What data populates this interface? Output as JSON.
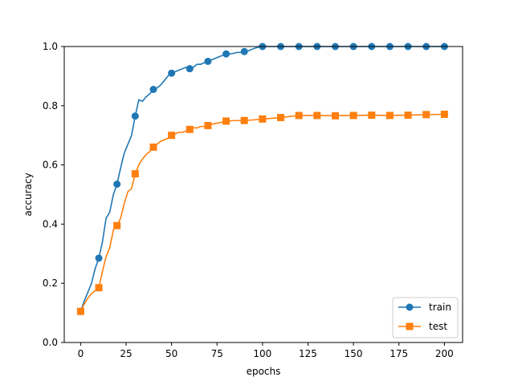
{
  "chart_data": {
    "type": "line",
    "title": "",
    "xlabel": "epochs",
    "ylabel": "accuracy",
    "xlim": [
      -9,
      210
    ],
    "ylim": [
      0.0,
      1.0
    ],
    "xticks": [
      0,
      25,
      50,
      75,
      100,
      125,
      150,
      175,
      200
    ],
    "yticks": [
      0.0,
      0.2,
      0.4,
      0.6,
      0.8,
      1.0
    ],
    "xtick_labels": [
      "0",
      "25",
      "50",
      "75",
      "100",
      "125",
      "150",
      "175",
      "200"
    ],
    "ytick_labels": [
      "0.0",
      "0.2",
      "0.4",
      "0.6",
      "0.8",
      "1.0"
    ],
    "grid": false,
    "legend_position": "lower-right",
    "series": [
      {
        "name": "train",
        "color": "#1f77b4",
        "marker": "circle",
        "marker_every": 10,
        "x": [
          0,
          2,
          4,
          6,
          8,
          10,
          12,
          14,
          16,
          18,
          20,
          22,
          24,
          26,
          28,
          30,
          32,
          34,
          36,
          38,
          40,
          42,
          44,
          46,
          48,
          50,
          52,
          54,
          56,
          58,
          60,
          62,
          64,
          66,
          68,
          70,
          72,
          74,
          76,
          78,
          80,
          82,
          84,
          86,
          88,
          90,
          92,
          94,
          96,
          98,
          100,
          110,
          120,
          130,
          140,
          150,
          160,
          170,
          180,
          190,
          200
        ],
        "values": [
          0.105,
          0.14,
          0.17,
          0.2,
          0.25,
          0.285,
          0.34,
          0.42,
          0.44,
          0.5,
          0.535,
          0.59,
          0.64,
          0.67,
          0.7,
          0.765,
          0.82,
          0.815,
          0.83,
          0.84,
          0.855,
          0.86,
          0.87,
          0.885,
          0.9,
          0.91,
          0.915,
          0.92,
          0.925,
          0.93,
          0.925,
          0.93,
          0.94,
          0.94,
          0.945,
          0.95,
          0.955,
          0.96,
          0.965,
          0.97,
          0.975,
          0.975,
          0.977,
          0.98,
          0.98,
          0.983,
          0.985,
          0.99,
          0.995,
          0.998,
          1.0,
          1.0,
          1.0,
          1.0,
          1.0,
          1.0,
          1.0,
          1.0,
          1.0,
          1.0,
          1.0
        ]
      },
      {
        "name": "test",
        "color": "#ff7f0e",
        "marker": "square",
        "marker_every": 10,
        "x": [
          0,
          2,
          4,
          6,
          8,
          10,
          12,
          14,
          16,
          18,
          20,
          22,
          24,
          26,
          28,
          30,
          32,
          34,
          36,
          38,
          40,
          42,
          44,
          46,
          48,
          50,
          52,
          54,
          56,
          58,
          60,
          62,
          64,
          66,
          68,
          70,
          72,
          74,
          76,
          78,
          80,
          85,
          90,
          95,
          100,
          110,
          120,
          130,
          140,
          150,
          160,
          170,
          180,
          190,
          200
        ],
        "values": [
          0.105,
          0.13,
          0.15,
          0.165,
          0.175,
          0.185,
          0.24,
          0.29,
          0.32,
          0.38,
          0.395,
          0.42,
          0.47,
          0.51,
          0.52,
          0.57,
          0.6,
          0.62,
          0.635,
          0.645,
          0.66,
          0.67,
          0.68,
          0.685,
          0.69,
          0.7,
          0.705,
          0.71,
          0.71,
          0.715,
          0.72,
          0.725,
          0.725,
          0.73,
          0.73,
          0.733,
          0.737,
          0.74,
          0.742,
          0.745,
          0.748,
          0.75,
          0.75,
          0.752,
          0.755,
          0.76,
          0.767,
          0.767,
          0.766,
          0.767,
          0.768,
          0.767,
          0.768,
          0.77,
          0.771
        ]
      }
    ]
  }
}
